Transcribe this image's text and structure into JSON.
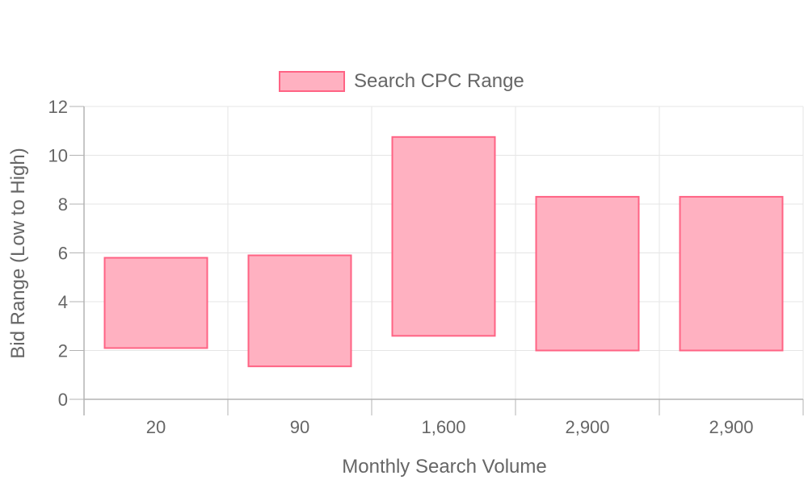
{
  "chart_data": {
    "type": "bar",
    "title": "",
    "categories": [
      "20",
      "90",
      "1,600",
      "2,900",
      "2,900"
    ],
    "series": [
      {
        "name": "Search CPC Range",
        "ranges": [
          [
            2.1,
            5.8
          ],
          [
            1.35,
            5.9
          ],
          [
            2.6,
            10.75
          ],
          [
            2.0,
            8.3
          ],
          [
            2.0,
            8.3
          ]
        ]
      }
    ],
    "xlabel": "Monthly Search Volume",
    "ylabel": "Bid Range (Low to High)",
    "ylim": [
      0,
      12
    ],
    "yticks": [
      "0",
      "2",
      "4",
      "6",
      "8",
      "10",
      "12"
    ],
    "legend_position": "top",
    "grid": true,
    "colors": {
      "bar_fill": "#ffb1c1",
      "bar_stroke": "#ff6384",
      "grid": "#e5e5e5",
      "axis": "#b3b3b3",
      "text": "#666666"
    }
  }
}
